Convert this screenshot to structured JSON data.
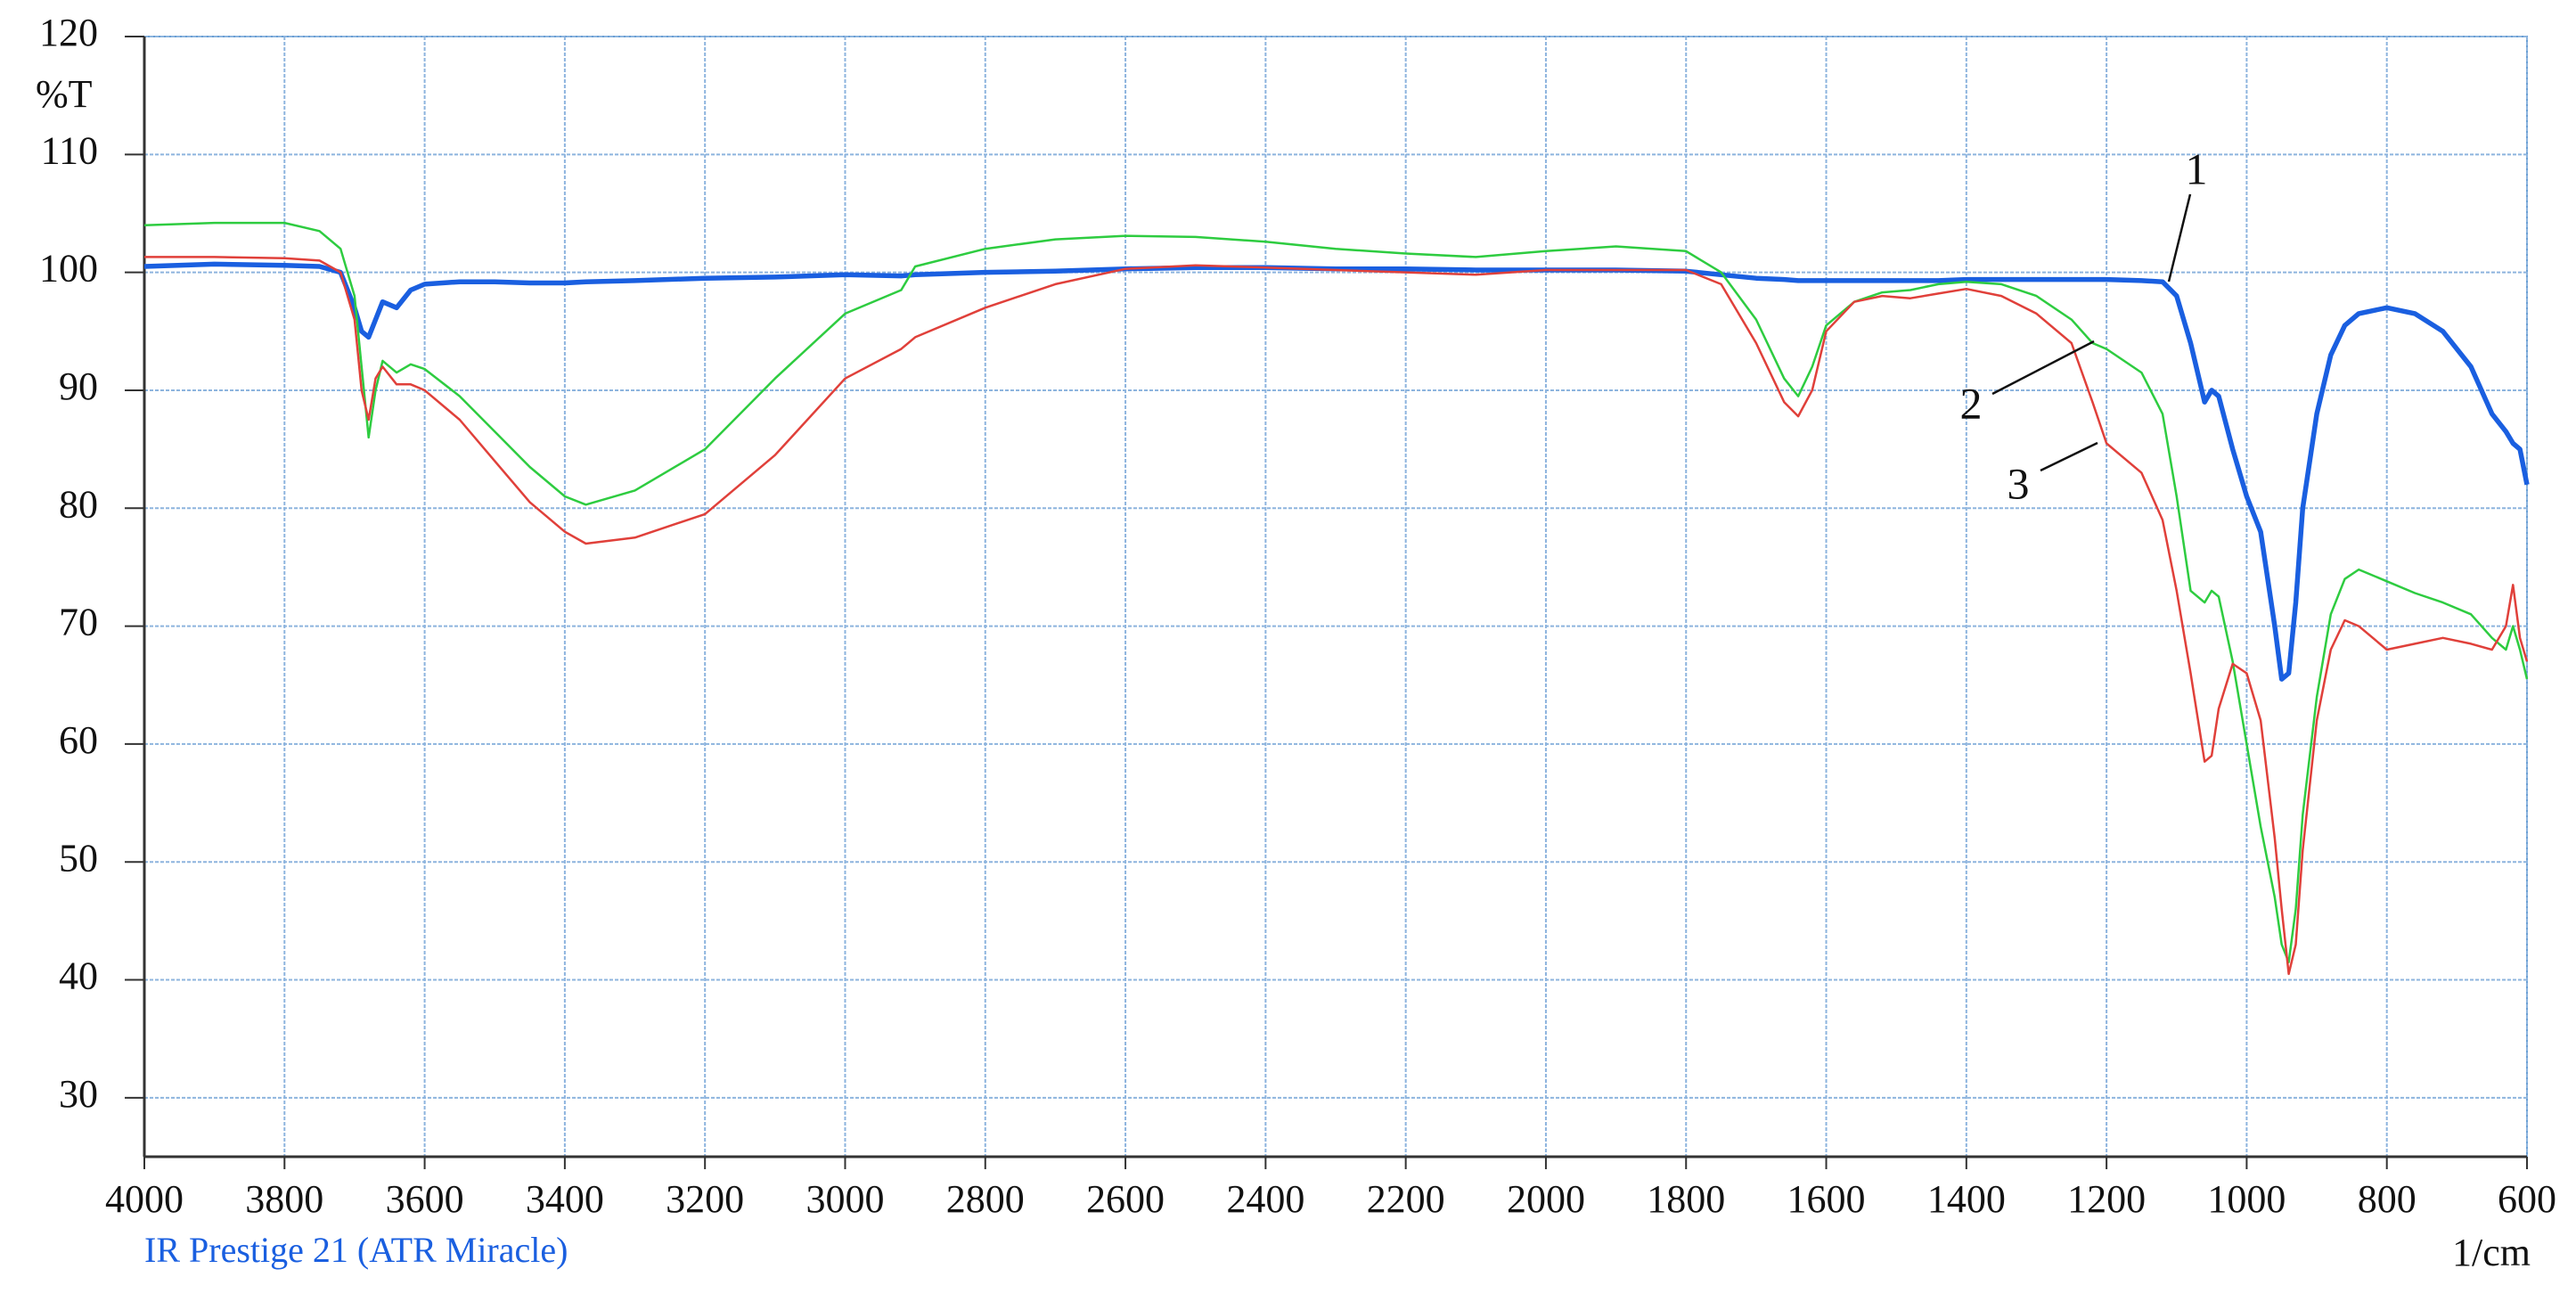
{
  "chart_data": {
    "type": "line",
    "y_label": "%T",
    "x_label": "1/cm",
    "footnote": "IR Prestige 21 (ATR Miracle)",
    "xlim": [
      4000,
      600
    ],
    "ylim": [
      25,
      120
    ],
    "xticks": [
      4000,
      3800,
      3600,
      3400,
      3200,
      3000,
      2800,
      2600,
      2400,
      2200,
      2000,
      1800,
      1600,
      1400,
      1200,
      1000,
      800,
      600
    ],
    "yticks": [
      30,
      40,
      50,
      60,
      70,
      80,
      90,
      100,
      110,
      120
    ],
    "grid": true,
    "x": [
      4000,
      3900,
      3800,
      3750,
      3720,
      3700,
      3690,
      3680,
      3670,
      3660,
      3640,
      3620,
      3600,
      3550,
      3500,
      3450,
      3400,
      3370,
      3300,
      3200,
      3100,
      3000,
      2920,
      2900,
      2800,
      2700,
      2600,
      2500,
      2400,
      2300,
      2200,
      2100,
      2000,
      1900,
      1800,
      1750,
      1700,
      1660,
      1640,
      1620,
      1600,
      1560,
      1520,
      1480,
      1440,
      1400,
      1350,
      1300,
      1250,
      1220,
      1200,
      1150,
      1120,
      1100,
      1080,
      1060,
      1050,
      1040,
      1020,
      1000,
      980,
      960,
      950,
      940,
      930,
      920,
      900,
      880,
      860,
      840,
      800,
      760,
      720,
      680,
      650,
      630,
      620,
      610,
      600
    ],
    "series": [
      {
        "name": "1",
        "color": "#1a5fe0",
        "values": [
          100.5,
          100.7,
          100.6,
          100.5,
          100,
          97,
          95,
          94.5,
          96,
          97.5,
          97,
          98.5,
          99,
          99.2,
          99.2,
          99.1,
          99.1,
          99.2,
          99.3,
          99.5,
          99.6,
          99.8,
          99.7,
          99.8,
          100,
          100.1,
          100.3,
          100.4,
          100.4,
          100.3,
          100.3,
          100.2,
          100.2,
          100.2,
          100.1,
          99.8,
          99.5,
          99.4,
          99.3,
          99.3,
          99.3,
          99.3,
          99.3,
          99.3,
          99.3,
          99.4,
          99.4,
          99.4,
          99.4,
          99.4,
          99.4,
          99.3,
          99.2,
          98,
          94,
          89,
          90,
          89.5,
          85,
          81,
          78,
          70,
          65.5,
          66,
          72,
          80,
          88,
          93,
          95.5,
          96.5,
          97,
          96.5,
          95,
          92,
          88,
          86.5,
          85.5,
          85,
          82
        ]
      },
      {
        "name": "2",
        "color": "#2ecc40",
        "values": [
          104,
          104.2,
          104.2,
          103.5,
          102,
          98,
          92,
          86,
          90,
          92.5,
          91.5,
          92.2,
          91.8,
          89.5,
          86.5,
          83.5,
          81,
          80.3,
          81.5,
          85,
          91,
          96.5,
          98.5,
          100.5,
          102,
          102.8,
          103.1,
          103,
          102.6,
          102,
          101.6,
          101.3,
          101.8,
          102.2,
          101.8,
          100,
          96,
          91,
          89.5,
          92,
          95.5,
          97.5,
          98.3,
          98.5,
          99,
          99.2,
          99,
          98,
          96,
          94,
          93.5,
          91.5,
          88,
          81,
          73,
          72,
          73,
          72.5,
          67,
          60,
          53,
          47,
          43,
          41.5,
          46,
          54,
          64,
          71,
          74,
          74.8,
          73.8,
          72.8,
          72,
          71,
          69,
          68,
          70,
          68,
          65.5
        ]
      },
      {
        "name": "3",
        "color": "#e0403a",
        "values": [
          101.3,
          101.3,
          101.2,
          101,
          100,
          96,
          90,
          87.5,
          91,
          92,
          90.5,
          90.5,
          90,
          87.5,
          84,
          80.5,
          78,
          77,
          77.5,
          79.5,
          84.5,
          91,
          93.5,
          94.5,
          97,
          99,
          100.3,
          100.6,
          100.4,
          100.2,
          100,
          99.8,
          100.2,
          100.2,
          100.2,
          99,
          94,
          89,
          87.8,
          90,
          95,
          97.5,
          98,
          97.8,
          98.2,
          98.6,
          98,
          96.5,
          94,
          89,
          85.5,
          83,
          79,
          73,
          66,
          58.5,
          59,
          63,
          66.8,
          66,
          62,
          52,
          46,
          40.5,
          43,
          51,
          62,
          68,
          70.5,
          70,
          68,
          68.5,
          69,
          68.5,
          68,
          70,
          73.5,
          69,
          67
        ]
      }
    ]
  }
}
